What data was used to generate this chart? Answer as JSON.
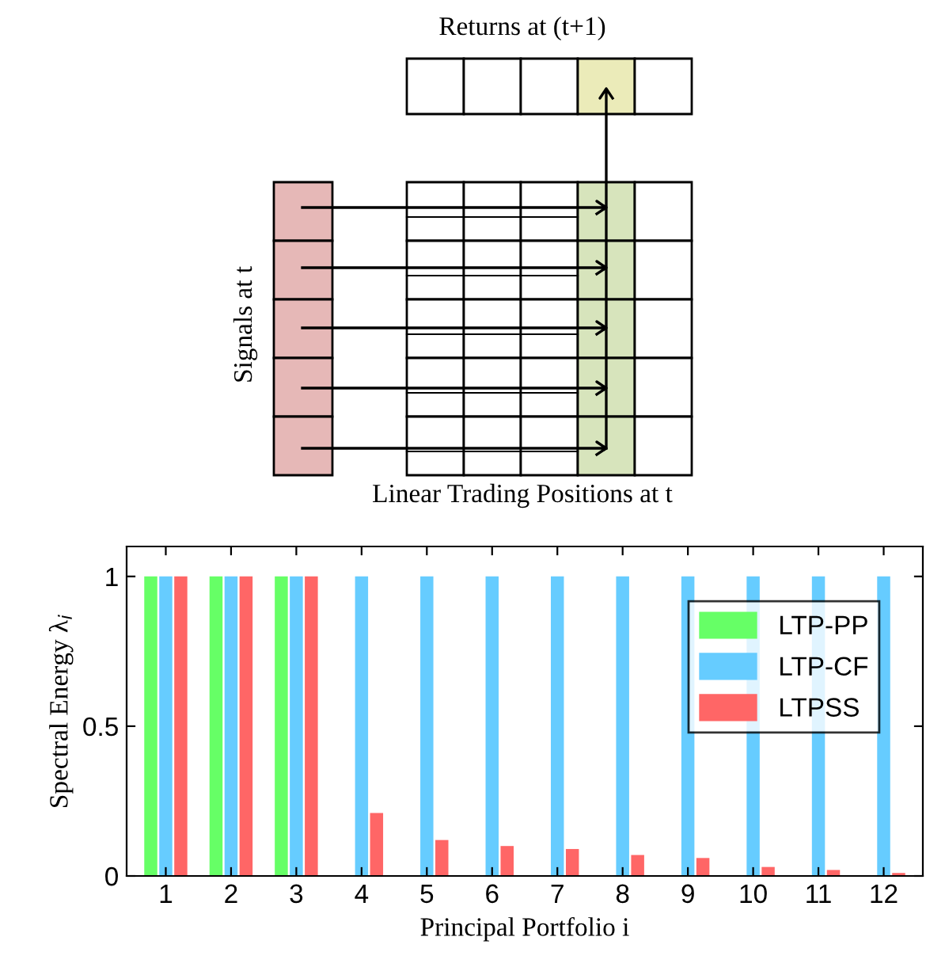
{
  "chart_data": [
    {
      "type": "other",
      "annotations": [
        "Returns at (t+1)",
        "Signals at t",
        "Linear Trading Positions at t"
      ]
    },
    {
      "type": "bar",
      "xlabel": "Principal Portfolio i",
      "ylabel": "Spectral Energy λ$_{i}$",
      "categories": [
        "1",
        "2",
        "3",
        "4",
        "5",
        "6",
        "7",
        "8",
        "9",
        "10",
        "11",
        "12"
      ],
      "series": [
        {
          "name": "LTP-PP",
          "color": "#66ff66",
          "values": [
            1,
            1,
            1,
            0,
            0,
            0,
            0,
            0,
            0,
            0,
            0,
            0
          ]
        },
        {
          "name": "LTP-CF",
          "color": "#66ccff",
          "values": [
            1,
            1,
            1,
            1,
            1,
            1,
            1,
            1,
            1,
            1,
            1,
            1
          ]
        },
        {
          "name": "LTPSS",
          "color": "#ff6666",
          "values": [
            1,
            1,
            1,
            0.21,
            0.12,
            0.1,
            0.09,
            0.07,
            0.06,
            0.03,
            0.02,
            0.01
          ]
        }
      ],
      "ylim": [
        0,
        1.1
      ],
      "yticks": [
        0,
        0.5,
        1
      ],
      "grid": false,
      "legend": "top right"
    }
  ]
}
